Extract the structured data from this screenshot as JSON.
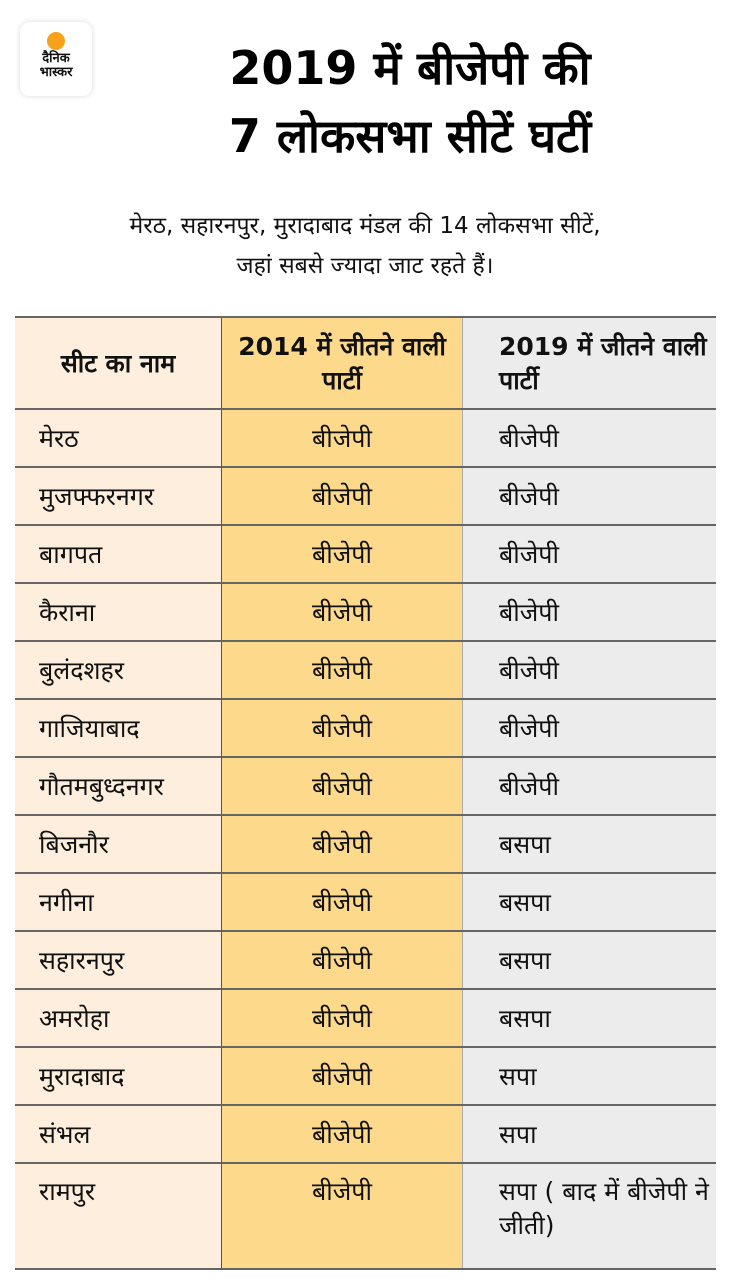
{
  "logo": {
    "line1": "दैनिक",
    "line2": "भास्कर"
  },
  "title": {
    "line1": "2019 में बीजेपी की",
    "line2": "7 लोकसभा सीटें घटीं"
  },
  "subtitle": {
    "line1": "मेरठ, सहारनपुर, मुरादाबाद मंडल की 14 लोकसभा सीटें,",
    "line2": "जहां सबसे ज्यादा जाट रहते हैं।"
  },
  "colors": {
    "col1": "#fdeedd",
    "col2": "#fdd98c",
    "col3": "#ececec"
  },
  "table": {
    "headers": [
      "सीट का नाम",
      "2014 में जीतने वाली पार्टी",
      "2019 में जीतने वाली पार्टी"
    ],
    "rows": [
      [
        "मेरठ",
        "बीजेपी",
        "बीजेपी"
      ],
      [
        "मुजफ्फरनगर",
        "बीजेपी",
        "बीजेपी"
      ],
      [
        "बागपत",
        "बीजेपी",
        "बीजेपी"
      ],
      [
        "कैराना",
        "बीजेपी",
        "बीजेपी"
      ],
      [
        "बुलंदशहर",
        "बीजेपी",
        "बीजेपी"
      ],
      [
        "गाजियाबाद",
        "बीजेपी",
        "बीजेपी"
      ],
      [
        "गौतमबुध्दनगर",
        "बीजेपी",
        "बीजेपी"
      ],
      [
        "बिजनौर",
        "बीजेपी",
        "बसपा"
      ],
      [
        "नगीना",
        "बीजेपी",
        "बसपा"
      ],
      [
        "सहारनपुर",
        "बीजेपी",
        "बसपा"
      ],
      [
        "अमरोहा",
        "बीजेपी",
        "बसपा"
      ],
      [
        "मुरादाबाद",
        "बीजेपी",
        "सपा"
      ],
      [
        "संभल",
        "बीजेपी",
        "सपा"
      ],
      [
        "रामपुर",
        "बीजेपी",
        "सपा ( बाद में बीजेपी ने जीती)"
      ]
    ]
  }
}
